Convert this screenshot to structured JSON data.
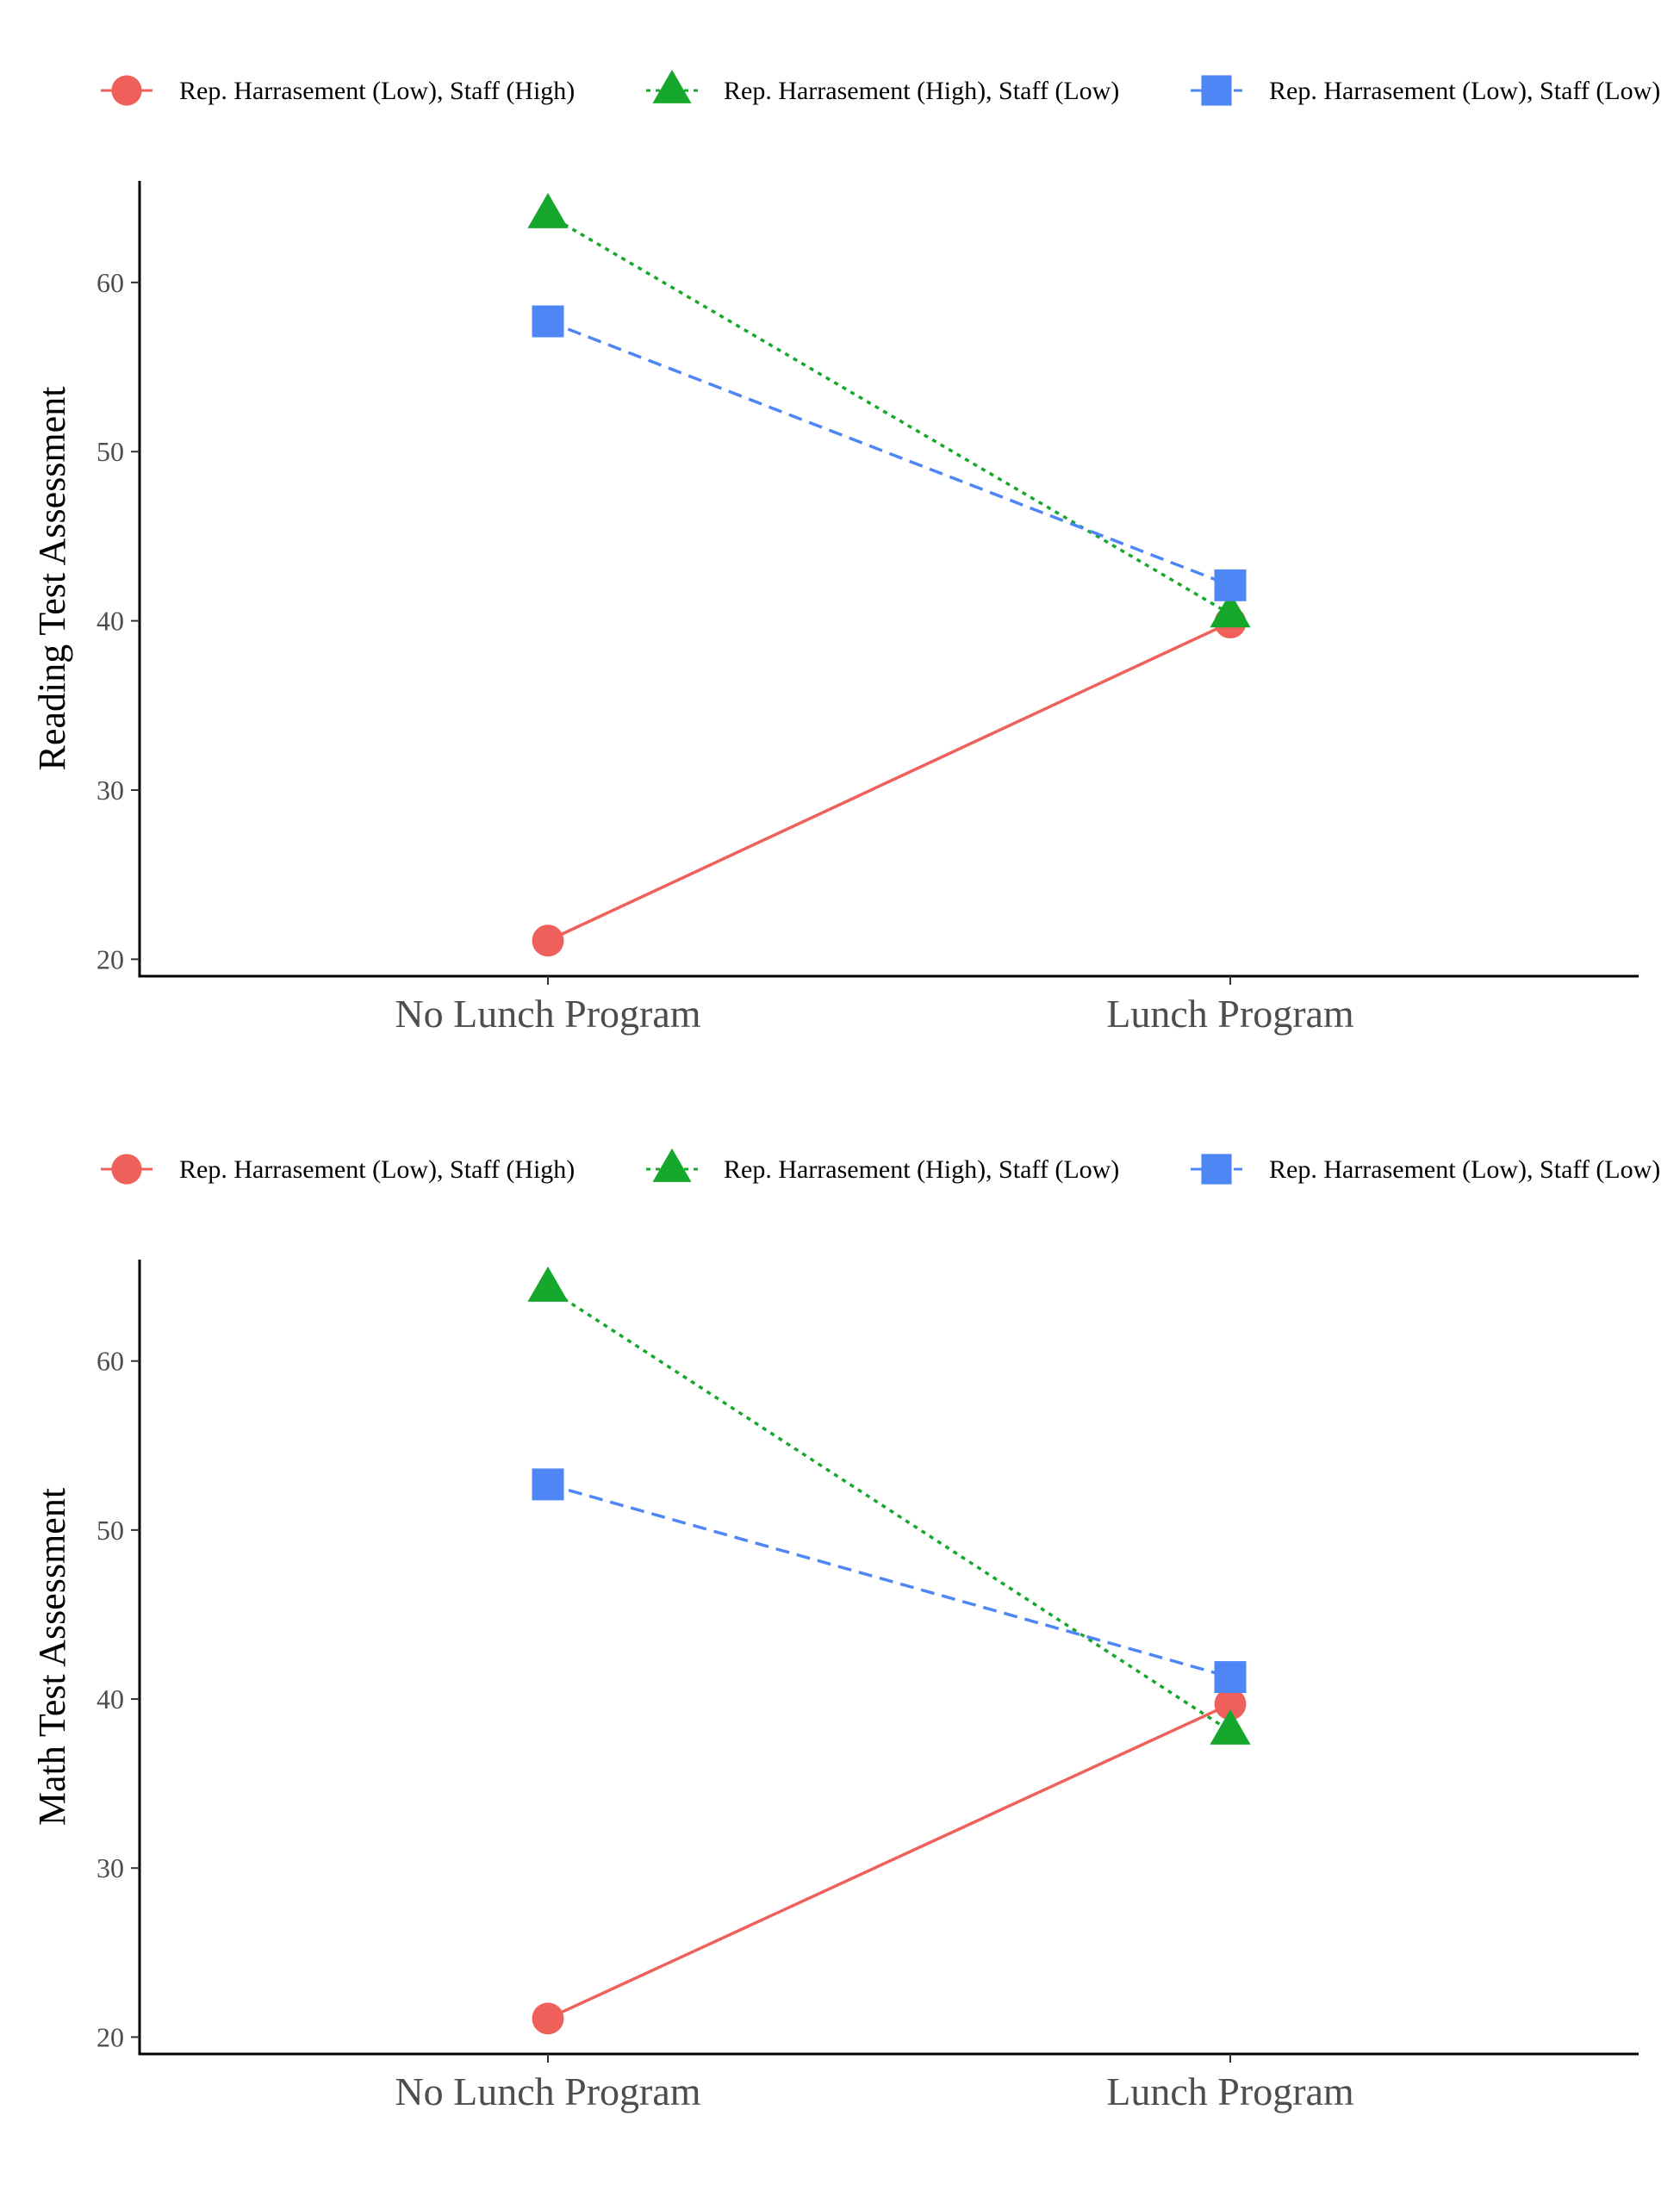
{
  "chart_data": [
    {
      "type": "line",
      "ylabel": "Reading Test Assessment",
      "xlabel": "",
      "categories": [
        "No Lunch Program",
        "Lunch Program"
      ],
      "ylim": [
        19,
        66
      ],
      "yticks": [
        20,
        30,
        40,
        50,
        60
      ],
      "legend_position": "top",
      "series": [
        {
          "name": "Rep. Harrasement (Low), Staff (High)",
          "values": [
            21.1,
            39.9
          ],
          "color": "#F0605A",
          "marker": "circle",
          "dash": "solid"
        },
        {
          "name": "Rep. Harrasement (High), Staff (Low)",
          "values": [
            64.0,
            40.4
          ],
          "color": "#16A72D",
          "marker": "triangle",
          "dash": "dotted"
        },
        {
          "name": "Rep. Harrasement (Low), Staff (Low)",
          "values": [
            57.7,
            42.1
          ],
          "color": "#4F86F5",
          "marker": "square",
          "dash": "dashed"
        }
      ]
    },
    {
      "type": "line",
      "ylabel": "Math Test Assessment",
      "xlabel": "",
      "categories": [
        "No Lunch Program",
        "Lunch Program"
      ],
      "ylim": [
        19,
        66
      ],
      "yticks": [
        20,
        30,
        40,
        50,
        60
      ],
      "legend_position": "top",
      "series": [
        {
          "name": "Rep. Harrasement (Low), Staff (High)",
          "values": [
            21.1,
            39.7
          ],
          "color": "#F0605A",
          "marker": "circle",
          "dash": "solid"
        },
        {
          "name": "Rep. Harrasement (High), Staff (Low)",
          "values": [
            64.3,
            38.1
          ],
          "color": "#16A72D",
          "marker": "triangle",
          "dash": "dotted"
        },
        {
          "name": "Rep. Harrasement (Low), Staff (Low)",
          "values": [
            52.7,
            41.3
          ],
          "color": "#4F86F5",
          "marker": "square",
          "dash": "dashed"
        }
      ]
    }
  ]
}
